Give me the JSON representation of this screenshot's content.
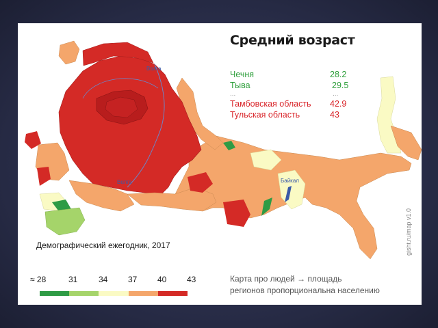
{
  "title": "Средний возраст",
  "stats": {
    "youngest": [
      {
        "name": "Чечня",
        "value": "28.2"
      },
      {
        "name": "Тыва",
        "value": "29.5"
      }
    ],
    "ellipsis": "...",
    "oldest": [
      {
        "name": "Тамбовская область",
        "value": "42.9"
      },
      {
        "name": "Тульская область",
        "value": "43"
      }
    ]
  },
  "source": "Демографический ежегодник, 2017",
  "legend": {
    "labels": [
      "≈ 28",
      "31",
      "34",
      "37",
      "40",
      "43"
    ],
    "colors": [
      "#2e9b45",
      "#a5d46a",
      "#fafac4",
      "#f4a66b",
      "#d42a26"
    ]
  },
  "note": {
    "line1": "Карта про людей",
    "arrow": "→",
    "line1b": "площадь",
    "line2": "регионов пропорциональна населению"
  },
  "watermark": "gisht.ru/map  v1.0",
  "map": {
    "rivers": {
      "volga_top": "Волга",
      "volga_bottom": "Волга",
      "baikal": "Байкал"
    },
    "colors": {
      "red": "#d42a26",
      "dark_red": "#b81d1d",
      "orange": "#f4a66b",
      "yellow": "#fafac4",
      "light_green": "#a5d46a",
      "green": "#2e9b45",
      "water": "#6b86c9"
    }
  }
}
